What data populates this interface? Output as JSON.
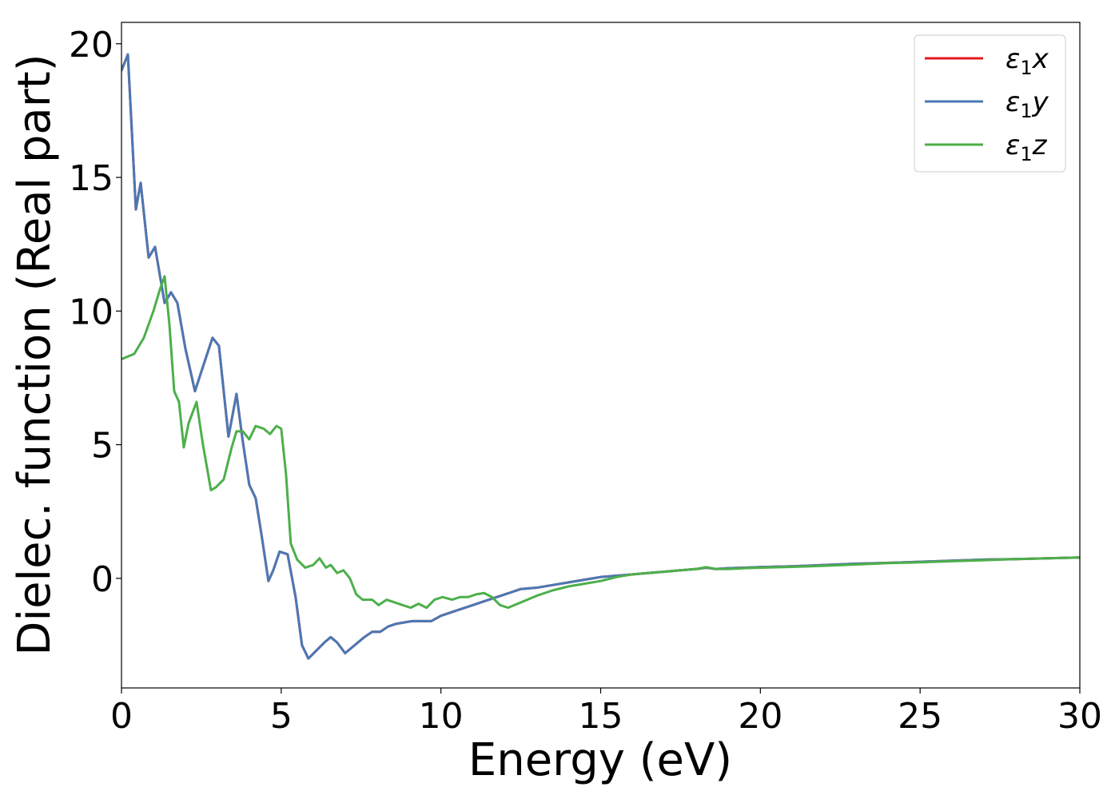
{
  "chart_data": {
    "type": "line",
    "xlabel": "Energy (eV)",
    "ylabel": "Dielec. function (Real part)",
    "xlim": [
      0,
      30
    ],
    "ylim": [
      -4.1,
      20.8
    ],
    "xticks": [
      0,
      5,
      10,
      15,
      20,
      25,
      30
    ],
    "yticks": [
      0,
      5,
      10,
      15,
      20
    ],
    "grid": false,
    "legend_position": "top-right",
    "series": [
      {
        "name": "ε1x",
        "legend_base": "ε",
        "legend_sub": "1",
        "legend_var": "x",
        "color": "#e41a1c",
        "x": [
          0,
          0.2,
          0.45,
          0.6,
          0.85,
          1.05,
          1.35,
          1.55,
          1.75,
          2.0,
          2.3,
          2.6,
          2.85,
          3.05,
          3.35,
          3.6,
          3.8,
          4.0,
          4.2,
          4.4,
          4.6,
          4.75,
          4.95,
          5.2,
          5.45,
          5.65,
          5.85,
          6.1,
          6.35,
          6.55,
          6.75,
          7.0,
          7.3,
          7.6,
          7.85,
          8.1,
          8.35,
          8.6,
          8.85,
          9.1,
          9.4,
          9.7,
          10.0,
          10.5,
          11.0,
          11.5,
          12.0,
          12.5,
          13.0,
          13.5,
          14.0,
          14.5,
          15.0,
          15.5,
          16.0,
          16.5,
          17.0,
          17.5,
          18.0,
          18.3,
          18.6,
          19.0,
          19.5,
          20.0,
          21.0,
          22.0,
          23.0,
          24.0,
          25.0,
          26.0,
          27.0,
          28.0,
          29.0,
          30.0
        ],
        "y": [
          19.0,
          19.6,
          13.8,
          14.8,
          12.0,
          12.4,
          10.3,
          10.7,
          10.3,
          8.6,
          7.0,
          8.1,
          9.0,
          8.7,
          5.3,
          6.9,
          5.1,
          3.5,
          3.0,
          1.5,
          -0.1,
          0.3,
          1.0,
          0.9,
          -0.7,
          -2.5,
          -3.0,
          -2.7,
          -2.4,
          -2.2,
          -2.4,
          -2.8,
          -2.5,
          -2.2,
          -2.0,
          -2.0,
          -1.8,
          -1.7,
          -1.65,
          -1.6,
          -1.6,
          -1.6,
          -1.4,
          -1.2,
          -1.0,
          -0.8,
          -0.6,
          -0.4,
          -0.35,
          -0.25,
          -0.15,
          -0.05,
          0.05,
          0.1,
          0.15,
          0.2,
          0.25,
          0.3,
          0.35,
          0.4,
          0.35,
          0.38,
          0.4,
          0.42,
          0.45,
          0.5,
          0.55,
          0.58,
          0.62,
          0.66,
          0.7,
          0.72,
          0.75,
          0.78
        ]
      },
      {
        "name": "ε1y",
        "legend_base": "ε",
        "legend_sub": "1",
        "legend_var": "y",
        "color": "#4a78b4",
        "x": [
          0,
          0.2,
          0.45,
          0.6,
          0.85,
          1.05,
          1.35,
          1.55,
          1.75,
          2.0,
          2.3,
          2.6,
          2.85,
          3.05,
          3.35,
          3.6,
          3.8,
          4.0,
          4.2,
          4.4,
          4.6,
          4.75,
          4.95,
          5.2,
          5.45,
          5.65,
          5.85,
          6.1,
          6.35,
          6.55,
          6.75,
          7.0,
          7.3,
          7.6,
          7.85,
          8.1,
          8.35,
          8.6,
          8.85,
          9.1,
          9.4,
          9.7,
          10.0,
          10.5,
          11.0,
          11.5,
          12.0,
          12.5,
          13.0,
          13.5,
          14.0,
          14.5,
          15.0,
          15.5,
          16.0,
          16.5,
          17.0,
          17.5,
          18.0,
          18.3,
          18.6,
          19.0,
          19.5,
          20.0,
          21.0,
          22.0,
          23.0,
          24.0,
          25.0,
          26.0,
          27.0,
          28.0,
          29.0,
          30.0
        ],
        "y": [
          19.0,
          19.6,
          13.8,
          14.8,
          12.0,
          12.4,
          10.3,
          10.7,
          10.3,
          8.6,
          7.0,
          8.1,
          9.0,
          8.7,
          5.3,
          6.9,
          5.1,
          3.5,
          3.0,
          1.5,
          -0.1,
          0.3,
          1.0,
          0.9,
          -0.7,
          -2.5,
          -3.0,
          -2.7,
          -2.4,
          -2.2,
          -2.4,
          -2.8,
          -2.5,
          -2.2,
          -2.0,
          -2.0,
          -1.8,
          -1.7,
          -1.65,
          -1.6,
          -1.6,
          -1.6,
          -1.4,
          -1.2,
          -1.0,
          -0.8,
          -0.6,
          -0.4,
          -0.35,
          -0.25,
          -0.15,
          -0.05,
          0.05,
          0.1,
          0.15,
          0.2,
          0.25,
          0.3,
          0.35,
          0.4,
          0.35,
          0.38,
          0.4,
          0.42,
          0.45,
          0.5,
          0.55,
          0.58,
          0.62,
          0.66,
          0.7,
          0.72,
          0.75,
          0.78
        ]
      },
      {
        "name": "ε1z",
        "legend_base": "ε",
        "legend_sub": "1",
        "legend_var": "z",
        "color": "#4daf4a",
        "x": [
          0,
          0.4,
          0.7,
          1.0,
          1.2,
          1.35,
          1.5,
          1.65,
          1.8,
          1.95,
          2.1,
          2.35,
          2.55,
          2.8,
          2.95,
          3.2,
          3.45,
          3.6,
          3.8,
          4.0,
          4.2,
          4.45,
          4.65,
          4.85,
          5.0,
          5.15,
          5.3,
          5.5,
          5.75,
          6.0,
          6.2,
          6.4,
          6.55,
          6.75,
          6.95,
          7.15,
          7.35,
          7.55,
          7.85,
          8.05,
          8.3,
          8.55,
          8.8,
          9.05,
          9.3,
          9.55,
          9.8,
          10.05,
          10.35,
          10.6,
          10.85,
          11.1,
          11.35,
          11.6,
          11.85,
          12.1,
          12.5,
          13.0,
          13.5,
          14.0,
          14.5,
          15.0,
          15.5,
          16.0,
          16.5,
          17.0,
          17.5,
          18.0,
          18.3,
          18.6,
          19.0,
          19.5,
          20.0,
          21.0,
          22.0,
          23.0,
          24.0,
          25.0,
          26.0,
          27.0,
          28.0,
          29.0,
          30.0
        ],
        "y": [
          8.2,
          8.4,
          9.0,
          10.0,
          10.8,
          11.3,
          9.5,
          7.0,
          6.6,
          4.9,
          5.8,
          6.6,
          5.0,
          3.3,
          3.4,
          3.7,
          4.9,
          5.5,
          5.5,
          5.2,
          5.7,
          5.6,
          5.4,
          5.7,
          5.6,
          3.9,
          1.3,
          0.7,
          0.4,
          0.5,
          0.75,
          0.4,
          0.5,
          0.2,
          0.3,
          0.0,
          -0.6,
          -0.8,
          -0.8,
          -1.0,
          -0.8,
          -0.9,
          -1.0,
          -1.1,
          -0.95,
          -1.1,
          -0.8,
          -0.7,
          -0.8,
          -0.7,
          -0.7,
          -0.6,
          -0.55,
          -0.7,
          -1.0,
          -1.1,
          -0.9,
          -0.65,
          -0.45,
          -0.3,
          -0.2,
          -0.1,
          0.05,
          0.15,
          0.2,
          0.25,
          0.3,
          0.35,
          0.42,
          0.35,
          0.35,
          0.38,
          0.4,
          0.43,
          0.47,
          0.52,
          0.57,
          0.6,
          0.64,
          0.68,
          0.72,
          0.75,
          0.78
        ]
      }
    ]
  }
}
